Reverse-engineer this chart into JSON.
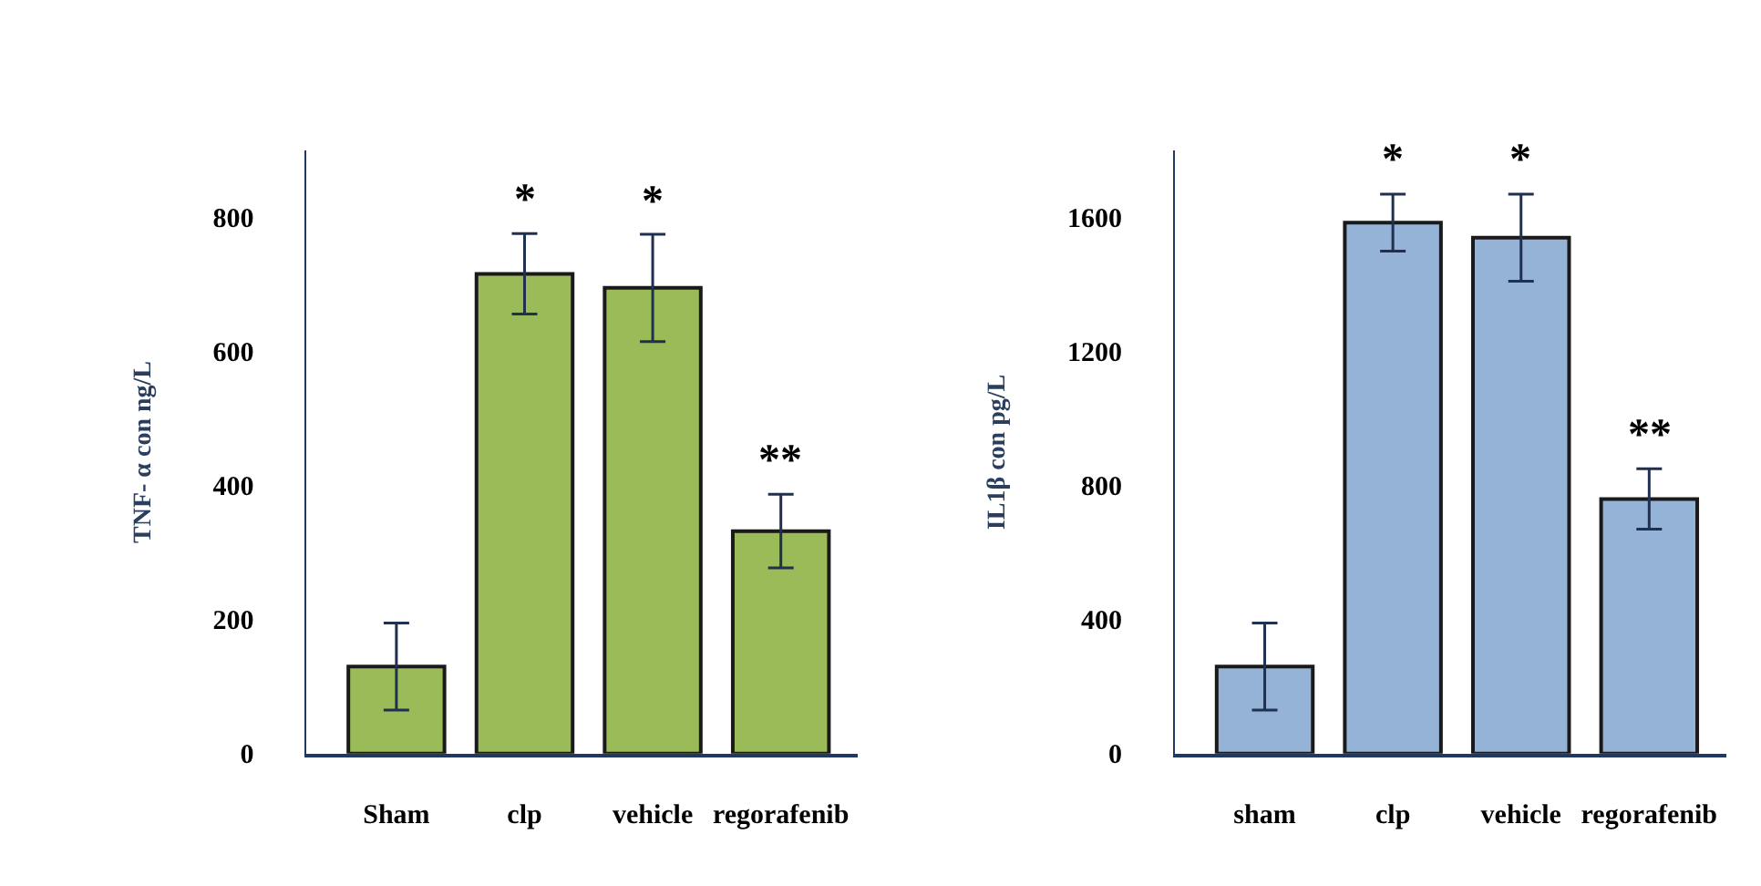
{
  "chart_data": [
    {
      "type": "bar",
      "ylabel": "TNF- α con ng/L",
      "categories": [
        "Sham",
        "clp",
        "vehicle",
        "regorafenib"
      ],
      "values": [
        130,
        716,
        695,
        332
      ],
      "errors": [
        65,
        60,
        80,
        55
      ],
      "color": "#9bbb59",
      "ylim": [
        0,
        900
      ],
      "yticks": [
        0,
        200,
        400,
        600,
        800
      ],
      "value_labels": [
        null,
        "*",
        "*",
        "**"
      ]
    },
    {
      "type": "bar",
      "ylabel": "IL1β con pg/L",
      "categories": [
        "sham",
        "clp",
        "vehicle",
        "regorafenib"
      ],
      "values": [
        260,
        1585,
        1540,
        760
      ],
      "errors": [
        130,
        85,
        130,
        90
      ],
      "color": "#95b3d7",
      "ylim": [
        0,
        1800
      ],
      "yticks": [
        0,
        400,
        800,
        1200,
        1600
      ],
      "value_labels": [
        null,
        "*",
        "*",
        "**"
      ]
    }
  ]
}
